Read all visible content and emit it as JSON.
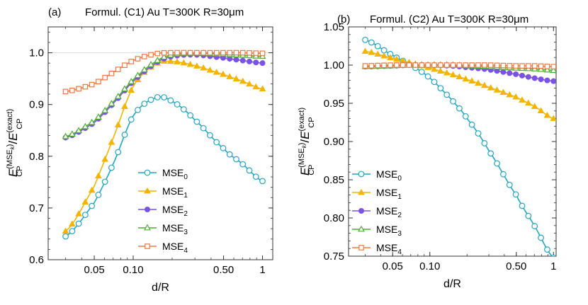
{
  "chart_data": [
    {
      "type": "line",
      "panel_label": "(a)",
      "title": "Formul. (C1)  Au T=300K   R=30μm",
      "xlabel": "d/R",
      "ylabel": {
        "E": "E",
        "cp": "CP",
        "sup_num": "(MSE",
        "sup_k": "k",
        "sup_close": ")",
        "slash": "/",
        "sup_den": "(exact)"
      },
      "xscale": "log",
      "xlim": [
        0.022,
        1.2
      ],
      "ylim": [
        0.6,
        1.05
      ],
      "xticks": [
        {
          "value": 0.05,
          "label": "0.05"
        },
        {
          "value": 0.1,
          "label": "0.10"
        },
        {
          "value": 0.5,
          "label": "0.50"
        },
        {
          "value": 1,
          "label": "1"
        }
      ],
      "yticks": [
        {
          "value": 0.6,
          "label": "0.6"
        },
        {
          "value": 0.7,
          "label": "0.7"
        },
        {
          "value": 0.8,
          "label": "0.8"
        },
        {
          "value": 0.9,
          "label": "0.9"
        },
        {
          "value": 1.0,
          "label": "1.0"
        }
      ],
      "reference_line": 1.0,
      "legend_position": "center-left",
      "x_points": [
        0.03,
        0.05,
        0.07,
        0.1,
        0.15,
        0.2,
        0.3,
        0.5,
        0.7,
        1.0
      ],
      "series": [
        {
          "name": "MSE",
          "sub": "0",
          "color": "#1fa6c4",
          "marker": "open-circle",
          "values": [
            0.645,
            0.71,
            0.785,
            0.878,
            0.913,
            0.906,
            0.87,
            0.815,
            0.785,
            0.752
          ]
        },
        {
          "name": "MSE",
          "sub": "1",
          "color": "#f4b400",
          "marker": "filled-triangle",
          "values": [
            0.655,
            0.742,
            0.835,
            0.935,
            0.978,
            0.983,
            0.975,
            0.958,
            0.945,
            0.93
          ]
        },
        {
          "name": "MSE",
          "sub": "2",
          "color": "#7a52e6",
          "marker": "filled-circle",
          "values": [
            0.836,
            0.865,
            0.902,
            0.945,
            0.98,
            0.993,
            0.996,
            0.99,
            0.985,
            0.98
          ]
        },
        {
          "name": "MSE",
          "sub": "3",
          "color": "#4caf30",
          "marker": "open-triangle",
          "values": [
            0.838,
            0.868,
            0.905,
            0.948,
            0.983,
            0.996,
            0.999,
            0.997,
            0.995,
            0.993
          ]
        },
        {
          "name": "MSE",
          "sub": "4",
          "color": "#f07840",
          "marker": "open-square",
          "values": [
            0.925,
            0.94,
            0.962,
            0.985,
            0.998,
            1.0,
            1.0,
            1.0,
            1.0,
            0.999
          ]
        }
      ]
    },
    {
      "type": "line",
      "panel_label": "(b)",
      "title": "Formul. (C2)  Au T=300K   R=30μm",
      "xlabel": "d/R",
      "ylabel": {
        "E": "E",
        "cp": "CP",
        "sup_num": "(MSE",
        "sup_k": "k",
        "sup_close": ")",
        "slash": "/",
        "sup_den": "(exact)"
      },
      "xscale": "log",
      "xlim": [
        0.022,
        1.05
      ],
      "ylim": [
        0.75,
        1.05
      ],
      "xticks": [
        {
          "value": 0.05,
          "label": "0.05"
        },
        {
          "value": 0.1,
          "label": "0.10"
        },
        {
          "value": 0.5,
          "label": "0.50"
        },
        {
          "value": 1,
          "label": "1"
        }
      ],
      "yticks": [
        {
          "value": 0.75,
          "label": "0.75"
        },
        {
          "value": 0.8,
          "label": "0.80"
        },
        {
          "value": 0.85,
          "label": "0.85"
        },
        {
          "value": 0.9,
          "label": "0.90"
        },
        {
          "value": 0.95,
          "label": "0.95"
        },
        {
          "value": 1.0,
          "label": "1.00"
        },
        {
          "value": 1.05,
          "label": "1.05"
        }
      ],
      "reference_line": null,
      "legend_position": "lower-left",
      "x_points": [
        0.03,
        0.05,
        0.07,
        0.1,
        0.15,
        0.2,
        0.3,
        0.5,
        0.7,
        1.0
      ],
      "series": [
        {
          "name": "MSE",
          "sub": "0",
          "color": "#1fa6c4",
          "marker": "open-circle",
          "values": [
            1.033,
            1.013,
            1.0,
            0.983,
            0.955,
            0.93,
            0.888,
            0.83,
            0.79,
            0.748
          ]
        },
        {
          "name": "MSE",
          "sub": "1",
          "color": "#f4b400",
          "marker": "filled-triangle",
          "values": [
            1.018,
            1.009,
            1.003,
            0.996,
            0.988,
            0.981,
            0.971,
            0.958,
            0.946,
            0.93
          ]
        },
        {
          "name": "MSE",
          "sub": "2",
          "color": "#7a52e6",
          "marker": "filled-circle",
          "values": [
            0.998,
            0.999,
            1.0,
            1.0,
            0.999,
            0.997,
            0.994,
            0.988,
            0.983,
            0.979
          ]
        },
        {
          "name": "MSE",
          "sub": "3",
          "color": "#4caf30",
          "marker": "open-triangle",
          "values": [
            0.998,
            0.999,
            1.0,
            1.0,
            1.0,
            0.999,
            0.998,
            0.996,
            0.995,
            0.993
          ]
        },
        {
          "name": "MSE",
          "sub": "4",
          "color": "#f07840",
          "marker": "open-square",
          "values": [
            0.999,
            1.0,
            1.0,
            1.0,
            1.0,
            1.0,
            1.0,
            0.999,
            0.999,
            0.998
          ]
        }
      ]
    }
  ]
}
